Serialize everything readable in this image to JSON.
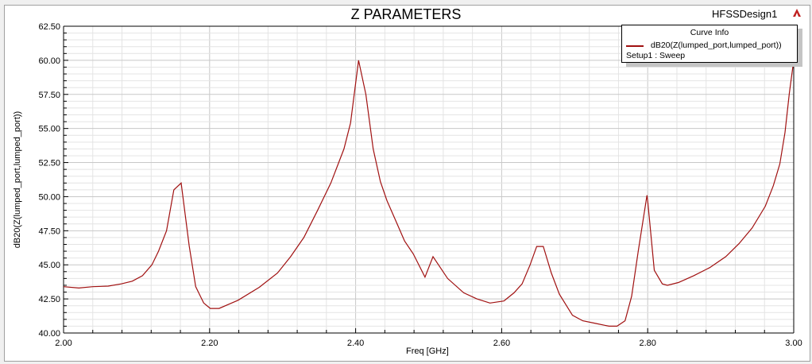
{
  "header": {
    "design_name": "HFSSDesign1",
    "logo_icon": "ansys-logo-icon"
  },
  "chart_data": {
    "type": "line",
    "title": "Z PARAMETERS",
    "xlabel": "Freq [GHz]",
    "ylabel": "dB20(Z(lumped_port,lumped_port))",
    "xlim": [
      2.0,
      3.0
    ],
    "ylim": [
      40.0,
      62.5
    ],
    "xticks": [
      "2.00",
      "2.20",
      "2.40",
      "2.60",
      "2.80",
      "3.00"
    ],
    "yticks": [
      "40.00",
      "42.50",
      "45.00",
      "47.50",
      "50.00",
      "52.50",
      "55.00",
      "57.50",
      "60.00",
      "62.50"
    ],
    "grid": true,
    "legend": {
      "title": "Curve Info",
      "placement": "top-right",
      "entries": [
        {
          "name": "dB20(Z(lumped_port,lumped_port))",
          "sub": "Setup1 : Sweep",
          "color": "#a01010"
        }
      ]
    },
    "series": [
      {
        "name": "dB20(Z(lumped_port,lumped_port))",
        "color": "#a01010",
        "x": [
          2.0,
          2.021,
          2.04,
          2.061,
          2.079,
          2.094,
          2.108,
          2.121,
          2.13,
          2.141,
          2.151,
          2.161,
          2.172,
          2.181,
          2.192,
          2.201,
          2.213,
          2.239,
          2.268,
          2.293,
          2.311,
          2.329,
          2.347,
          2.366,
          2.384,
          2.393,
          2.404,
          2.414,
          2.424,
          2.434,
          2.443,
          2.456,
          2.467,
          2.479,
          2.495,
          2.506,
          2.526,
          2.548,
          2.566,
          2.584,
          2.603,
          2.617,
          2.628,
          2.639,
          2.648,
          2.657,
          2.668,
          2.679,
          2.697,
          2.711,
          2.729,
          2.747,
          2.758,
          2.769,
          2.778,
          2.787,
          2.799,
          2.8,
          2.809,
          2.82,
          2.827,
          2.842,
          2.863,
          2.885,
          2.907,
          2.925,
          2.943,
          2.961,
          2.972,
          2.981,
          2.988,
          2.994,
          3.0
        ],
        "y": [
          43.4,
          43.3,
          43.4,
          43.44,
          43.6,
          43.8,
          44.2,
          45.0,
          46.0,
          47.5,
          50.5,
          51.0,
          46.4,
          43.4,
          42.2,
          41.8,
          41.8,
          42.4,
          43.35,
          44.4,
          45.6,
          47.0,
          48.9,
          51.0,
          53.5,
          55.4,
          60.0,
          57.5,
          53.5,
          51.1,
          49.7,
          48.1,
          46.75,
          45.8,
          44.1,
          45.6,
          44.0,
          42.95,
          42.5,
          42.2,
          42.35,
          42.95,
          43.6,
          45.0,
          46.35,
          46.35,
          44.4,
          42.85,
          41.3,
          40.9,
          40.7,
          40.5,
          40.5,
          40.9,
          42.7,
          46.0,
          50.1,
          49.7,
          44.6,
          43.6,
          43.5,
          43.7,
          44.2,
          44.8,
          45.6,
          46.55,
          47.7,
          49.3,
          50.8,
          52.4,
          54.7,
          57.6,
          60.0
        ]
      }
    ]
  }
}
